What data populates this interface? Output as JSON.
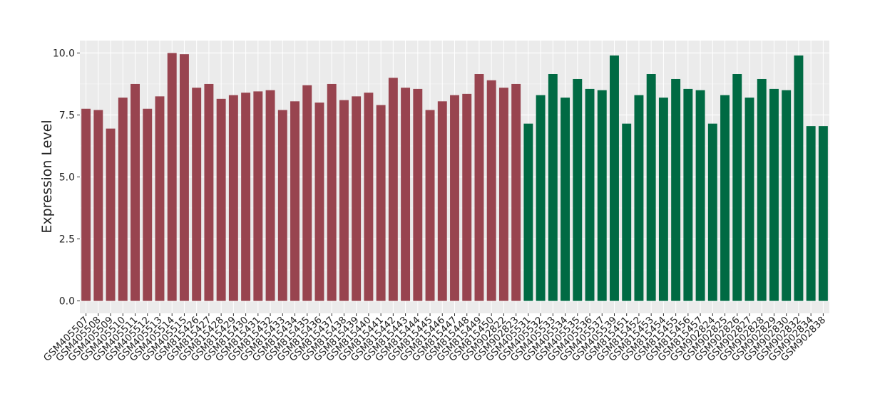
{
  "chart_data": {
    "type": "bar",
    "y_label": "Expression Level",
    "ylim": [
      -0.5,
      10.5
    ],
    "yticks": [
      {
        "value": 0,
        "label": "0.0"
      },
      {
        "value": 2.5,
        "label": "2.5"
      },
      {
        "value": 5,
        "label": "5.0"
      },
      {
        "value": 7.5,
        "label": "7.5"
      },
      {
        "value": 10,
        "label": "10.0"
      }
    ],
    "grid": true,
    "series": [
      {
        "color": "#98444f",
        "categories": [
          "GSM405507",
          "GSM405508",
          "GSM405509",
          "GSM405510",
          "GSM405511",
          "GSM405512",
          "GSM405513",
          "GSM405514",
          "GSM405515",
          "GSM815426",
          "GSM815427",
          "GSM815428",
          "GSM815429",
          "GSM815430",
          "GSM815431",
          "GSM815432",
          "GSM815433",
          "GSM815434",
          "GSM815435",
          "GSM815436",
          "GSM815437",
          "GSM815438",
          "GSM815439",
          "GSM815440",
          "GSM815441",
          "GSM815442",
          "GSM815443",
          "GSM815444",
          "GSM815445",
          "GSM815446",
          "GSM815447",
          "GSM815448",
          "GSM815449",
          "GSM815450",
          "GSM902822",
          "GSM902823"
        ],
        "values": [
          7.75,
          7.7,
          6.95,
          8.2,
          8.75,
          7.75,
          8.25,
          10.0,
          9.95,
          8.6,
          8.75,
          8.15,
          8.3,
          8.4,
          8.45,
          8.5,
          7.7,
          8.05,
          8.7,
          8.0,
          8.75,
          8.1,
          8.25,
          8.4,
          7.9,
          9.0,
          8.6,
          8.55,
          7.7,
          8.05,
          8.3,
          8.35,
          9.15,
          8.9,
          8.6,
          8.75
        ]
      },
      {
        "color": "#006a43",
        "categories": [
          "GSM405531",
          "GSM405532",
          "GSM405533",
          "GSM405534",
          "GSM405535",
          "GSM405536",
          "GSM405537",
          "GSM405539",
          "GSM815451",
          "GSM815452",
          "GSM815453",
          "GSM815454",
          "GSM815455",
          "GSM815456",
          "GSM815457",
          "GSM902824",
          "GSM902825",
          "GSM902826",
          "GSM902827",
          "GSM902828",
          "GSM902829",
          "GSM902830",
          "GSM902832",
          "GSM902834",
          "GSM902838"
        ],
        "values": [
          7.15,
          8.3,
          9.15,
          8.2,
          8.95,
          8.55,
          8.5,
          9.9,
          7.15,
          8.3,
          9.15,
          8.2,
          8.95,
          8.55,
          8.5,
          7.15,
          8.3,
          9.15,
          8.2,
          8.95,
          8.55,
          8.5,
          9.9,
          7.05,
          7.05
        ]
      }
    ]
  }
}
